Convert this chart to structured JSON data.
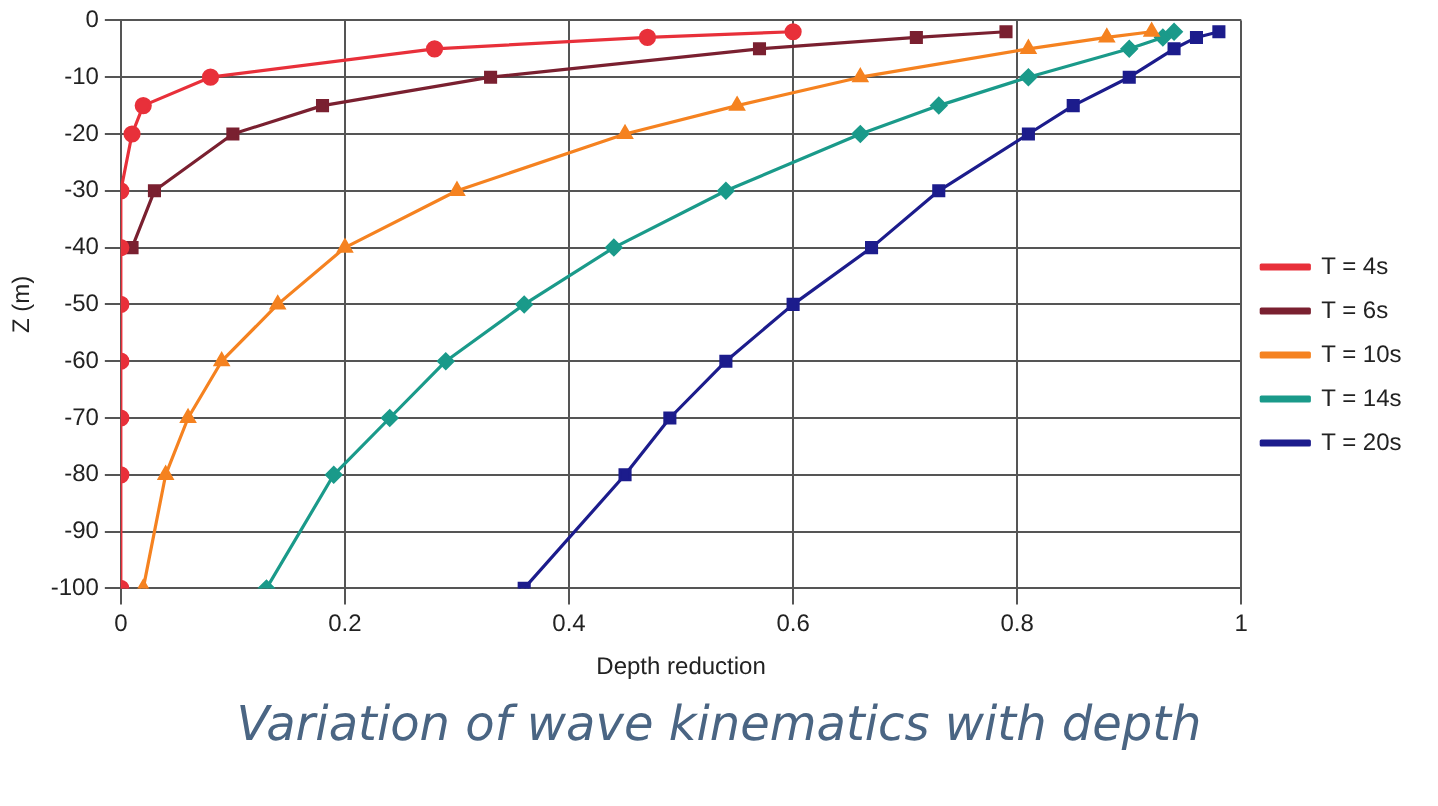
{
  "chart_data": {
    "type": "line",
    "title": "Variation of wave kinematics with depth",
    "xlabel": "Depth reduction",
    "ylabel": "Z (m)",
    "xlim": [
      0,
      1
    ],
    "xticks": [
      0,
      0.2,
      0.4,
      0.6,
      0.8,
      1
    ],
    "ylim": [
      -100,
      0
    ],
    "yticks": [
      0,
      -10,
      -20,
      -30,
      -40,
      -50,
      -60,
      -70,
      -80,
      -90,
      -100
    ],
    "grid": true,
    "legend": "right",
    "series": [
      {
        "name": "T = 4s",
        "color": "#e8303a",
        "marker": "circle",
        "x": [
          0.6,
          0.47,
          0.28,
          0.08,
          0.02,
          0.01,
          0,
          0,
          0,
          0,
          0,
          0,
          0
        ],
        "values": [
          -2,
          -3,
          -5,
          -10,
          -15,
          -20,
          -30,
          -40,
          -50,
          -60,
          -70,
          -80,
          -100
        ]
      },
      {
        "name": "T = 6s",
        "color": "#7a2030",
        "marker": "square",
        "x": [
          0.79,
          0.71,
          0.57,
          0.33,
          0.18,
          0.1,
          0.03,
          0.01,
          null,
          null,
          null,
          null,
          null
        ],
        "values": [
          -2,
          -3,
          -5,
          -10,
          -15,
          -20,
          -30,
          -40,
          null,
          null,
          null,
          null,
          null
        ]
      },
      {
        "name": "T = 10s",
        "color": "#f58220",
        "marker": "triangle",
        "x": [
          0.92,
          0.88,
          0.81,
          0.66,
          0.55,
          0.45,
          0.3,
          0.2,
          0.14,
          0.09,
          0.06,
          0.04,
          0.02
        ],
        "values": [
          -2,
          -3,
          -5,
          -10,
          -15,
          -20,
          -30,
          -40,
          -50,
          -60,
          -70,
          -80,
          -100
        ]
      },
      {
        "name": "T = 14s",
        "color": "#1a9a8a",
        "marker": "diamond",
        "x": [
          0.94,
          0.93,
          0.9,
          0.81,
          0.73,
          0.66,
          0.54,
          0.44,
          0.36,
          0.29,
          0.24,
          0.19,
          0.13
        ],
        "values": [
          -2,
          -3,
          -5,
          -10,
          -15,
          -20,
          -30,
          -40,
          -50,
          -60,
          -70,
          -80,
          -100
        ]
      },
      {
        "name": "T = 20s",
        "color": "#1c1c8c",
        "marker": "square",
        "x": [
          0.98,
          0.96,
          0.94,
          0.9,
          0.85,
          0.81,
          0.73,
          0.67,
          0.6,
          0.54,
          0.49,
          0.45,
          0.36
        ],
        "values": [
          -2,
          -3,
          -5,
          -10,
          -15,
          -20,
          -30,
          -40,
          -50,
          -60,
          -70,
          -80,
          -100
        ]
      }
    ]
  }
}
